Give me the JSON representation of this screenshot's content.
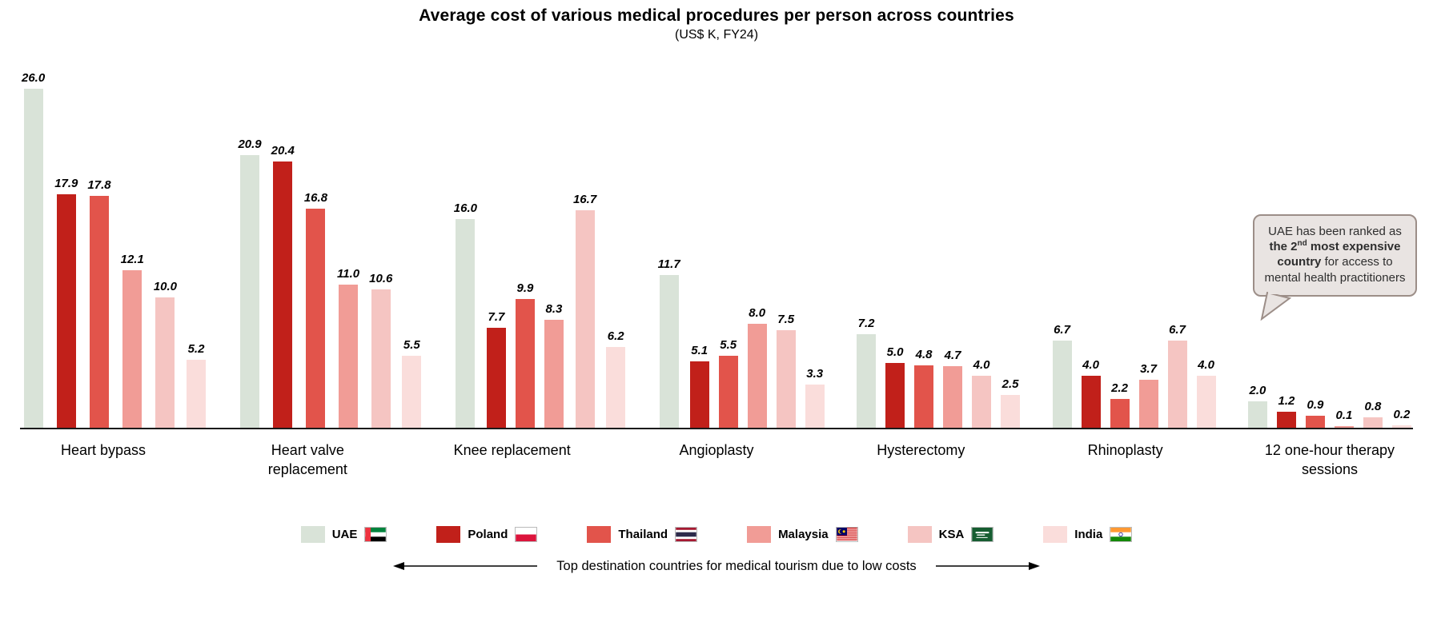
{
  "title": "Average cost of various medical procedures per person across countries",
  "subtitle": "(US$ K, FY24)",
  "chart_data": {
    "type": "bar",
    "categories": [
      "Heart bypass",
      "Heart valve replacement",
      "Knee replacement",
      "Angioplasty",
      "Hysterectomy",
      "Rhinoplasty",
      "12 one-hour therapy sessions"
    ],
    "series": [
      {
        "name": "UAE",
        "flag": "uae",
        "color": "#d9e3d8",
        "values": [
          26.0,
          20.9,
          16.0,
          11.7,
          7.2,
          6.7,
          2.0
        ]
      },
      {
        "name": "Poland",
        "flag": "poland",
        "color": "#c1201a",
        "values": [
          17.9,
          20.4,
          7.7,
          5.1,
          5.0,
          4.0,
          1.2
        ]
      },
      {
        "name": "Thailand",
        "flag": "thailand",
        "color": "#e2544b",
        "values": [
          17.8,
          16.8,
          9.9,
          5.5,
          4.8,
          2.2,
          0.9
        ]
      },
      {
        "name": "Malaysia",
        "flag": "malaysia",
        "color": "#f19c96",
        "values": [
          12.1,
          11.0,
          8.3,
          8.0,
          4.7,
          3.7,
          0.1
        ]
      },
      {
        "name": "KSA",
        "flag": "ksa",
        "color": "#f5c5c2",
        "values": [
          10.0,
          10.6,
          16.7,
          7.5,
          4.0,
          6.7,
          0.8
        ]
      },
      {
        "name": "India",
        "flag": "india",
        "color": "#fadddb",
        "values": [
          5.2,
          5.5,
          6.2,
          3.3,
          2.5,
          4.0,
          0.2
        ]
      }
    ],
    "ylim": [
      0,
      26
    ],
    "grid": false,
    "value_labels": true,
    "value_label_format": "one_decimal",
    "legend_position": "bottom"
  },
  "callout": {
    "text_before": "UAE has been ranked as ",
    "bold_part1": "the 2",
    "superscript": "nd",
    "bold_part2": " most expensive country",
    "text_after": " for access to mental health practitioners"
  },
  "bottom_note": {
    "text": "Top destination countries for medical tourism due to low costs"
  }
}
